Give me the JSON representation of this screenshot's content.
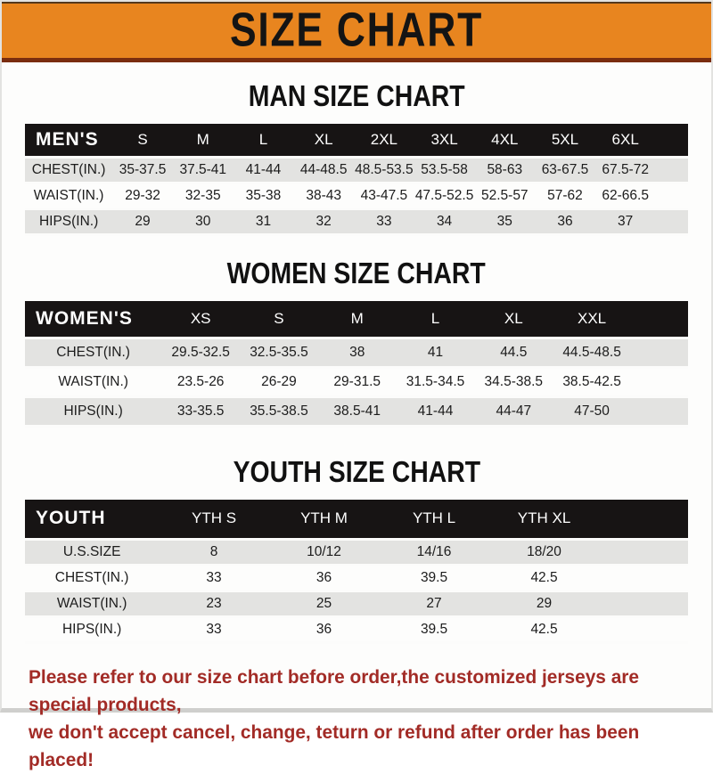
{
  "banner": {
    "title": "SIZE CHART",
    "bg_color": "#E8851F",
    "border_color": "#7A2D0E"
  },
  "sections": [
    {
      "title": "MAN SIZE CHART",
      "group_label": "MEN'S",
      "columns": [
        "S",
        "M",
        "L",
        "XL",
        "2XL",
        "3XL",
        "4XL",
        "5XL",
        "6XL"
      ],
      "rows": [
        {
          "label": "CHEST(IN.)",
          "values": [
            "35-37.5",
            "37.5-41",
            "41-44",
            "44-48.5",
            "48.5-53.5",
            "53.5-58",
            "58-63",
            "63-67.5",
            "67.5-72"
          ]
        },
        {
          "label": "WAIST(IN.)",
          "values": [
            "29-32",
            "32-35",
            "35-38",
            "38-43",
            "43-47.5",
            "47.5-52.5",
            "52.5-57",
            "57-62",
            "62-66.5"
          ]
        },
        {
          "label": "HIPS(IN.)",
          "values": [
            "29",
            "30",
            "31",
            "32",
            "33",
            "34",
            "35",
            "36",
            "37"
          ]
        }
      ]
    },
    {
      "title": "WOMEN SIZE CHART",
      "group_label": "WOMEN'S",
      "columns": [
        "XS",
        "S",
        "M",
        "L",
        "XL",
        "XXL"
      ],
      "rows": [
        {
          "label": "CHEST(IN.)",
          "values": [
            "29.5-32.5",
            "32.5-35.5",
            "38",
            "41",
            "44.5",
            "44.5-48.5"
          ]
        },
        {
          "label": "WAIST(IN.)",
          "values": [
            "23.5-26",
            "26-29",
            "29-31.5",
            "31.5-34.5",
            "34.5-38.5",
            "38.5-42.5"
          ]
        },
        {
          "label": "HIPS(IN.)",
          "values": [
            "33-35.5",
            "35.5-38.5",
            "38.5-41",
            "41-44",
            "44-47",
            "47-50"
          ]
        }
      ]
    },
    {
      "title": "YOUTH SIZE CHART",
      "group_label": "YOUTH",
      "columns": [
        "YTH S",
        "YTH M",
        "YTH L",
        "YTH XL"
      ],
      "rows": [
        {
          "label": "U.S.SIZE",
          "values": [
            "8",
            "10/12",
            "14/16",
            "18/20"
          ]
        },
        {
          "label": "CHEST(IN.)",
          "values": [
            "33",
            "36",
            "39.5",
            "42.5"
          ]
        },
        {
          "label": "WAIST(IN.)",
          "values": [
            "23",
            "25",
            "27",
            "29"
          ]
        },
        {
          "label": "HIPS(IN.)",
          "values": [
            "33",
            "36",
            "39.5",
            "42.5"
          ]
        }
      ]
    }
  ],
  "footer": {
    "line1": "Please refer to our size chart before order,the customized jerseys are special products,",
    "line2": "we don't accept cancel, change, teturn or refund after order has been placed!",
    "text_color": "#A22B26"
  }
}
